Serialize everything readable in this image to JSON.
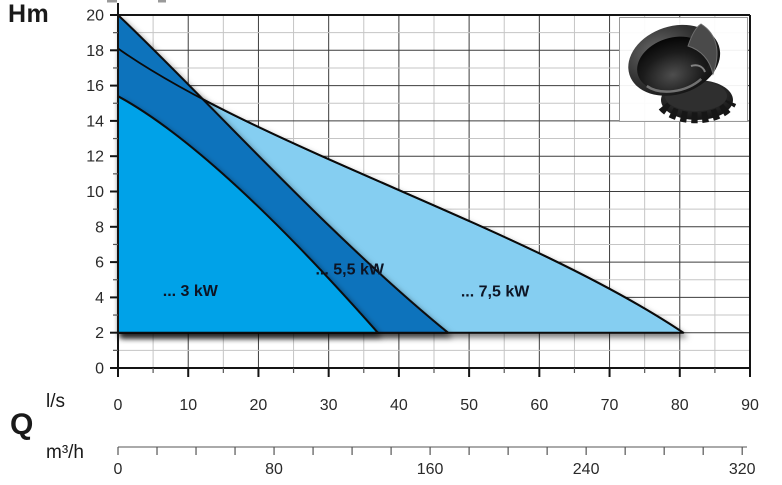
{
  "labels": {
    "y_axis_title": "Hm",
    "x_axis_title": "l/s",
    "flow_symbol": "Q",
    "secondary_axis_title": "m³/h"
  },
  "colors": {
    "background": "#ffffff",
    "area_3kw": "#00A2E8",
    "area_55kw": "#1173BC",
    "area_75kw": "#85CEF1",
    "curve_stroke": "#0a0a0a",
    "grid_major": "#3d3d3d",
    "grid_minor": "#c5c5c5",
    "axis": "#141414",
    "tick_minor": "#555555",
    "tick_text": "#2a2a2a",
    "series_label_text": "#0d1424",
    "image_box_border": "#999999",
    "artifact": "#9a9a9a"
  },
  "chart_data": {
    "type": "area",
    "grid": true,
    "legend_position": "inside-areas",
    "y_axis": {
      "label": "Hm",
      "min": 0,
      "max": 20,
      "major_tick_step": 2,
      "minor_tick_step": 1,
      "tick_labels": [
        0,
        2,
        4,
        6,
        8,
        10,
        12,
        14,
        16,
        18,
        20
      ]
    },
    "x_axis_primary": {
      "label": "l/s",
      "symbol": "Q",
      "min": 0,
      "max": 90,
      "major_tick_step": 10,
      "minor_tick_step": 5,
      "tick_labels": [
        0,
        10,
        20,
        30,
        40,
        50,
        60,
        70,
        80,
        90
      ]
    },
    "x_axis_secondary": {
      "label": "m³/h",
      "min": 0,
      "max": 320,
      "tick_step": 20,
      "labeled_ticks": [
        0,
        80,
        160,
        240,
        320
      ],
      "m3h_per_ls": 3.6
    },
    "series": [
      {
        "label": "... 7,5 kW",
        "power_kw": 7.5,
        "fill_color_key": "area_75kw",
        "shutoff_head_hm": 18.1,
        "end_flow_ls": 80.5,
        "base_head_hm": 2,
        "curve_bezier_ls_hm": [
          [
            0,
            18.1
          ],
          [
            20,
            12.5
          ],
          [
            58,
            8
          ],
          [
            80.5,
            2
          ]
        ],
        "label_anchor_ls_hm": [
          53.7,
          4.35
        ]
      },
      {
        "label": "... 5,5 kW",
        "power_kw": 5.5,
        "fill_color_key": "area_55kw",
        "shutoff_head_hm": 20,
        "end_flow_ls": 47,
        "base_head_hm": 2,
        "curve_bezier_ls_hm": [
          [
            0,
            20
          ],
          [
            12,
            15.5
          ],
          [
            30,
            7.5
          ],
          [
            47,
            2
          ]
        ],
        "label_anchor_ls_hm": [
          33.0,
          5.6
        ]
      },
      {
        "label": "... 3 kW",
        "power_kw": 3,
        "fill_color_key": "area_3kw",
        "shutoff_head_hm": 15.4,
        "end_flow_ls": 37,
        "base_head_hm": 2,
        "curve_bezier_ls_hm": [
          [
            0,
            15.4
          ],
          [
            12,
            12.8
          ],
          [
            27,
            6.5
          ],
          [
            37,
            2
          ]
        ],
        "label_anchor_ls_hm": [
          10.3,
          4.4
        ]
      }
    ]
  }
}
